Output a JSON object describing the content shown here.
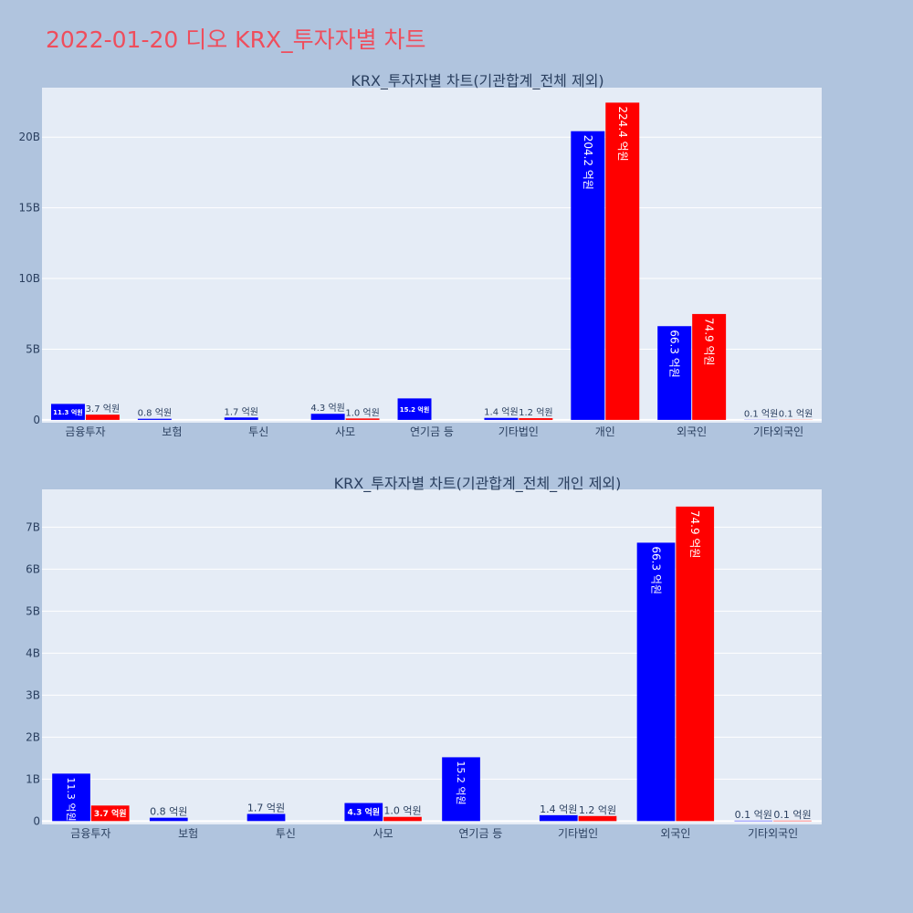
{
  "page": {
    "title": "2022-01-20 디오 KRX_투자자별 차트"
  },
  "colors": {
    "buy": "#0000ff",
    "sell": "#ff0000",
    "plot_bg": "#e5ecf6",
    "page_bg": "#b0c4de",
    "title": "#ef4d5c"
  },
  "chart_data": [
    {
      "type": "bar",
      "title": "KRX_투자자별 차트(기관합계_전체 제외)",
      "categories": [
        "금융투자",
        "보험",
        "투신",
        "사모",
        "연기금 등",
        "기타법인",
        "개인",
        "외국인",
        "기타외국인"
      ],
      "series": [
        {
          "color": "#0000ff",
          "values": [
            1.13,
            0.08,
            0.17,
            0.43,
            1.52,
            0.14,
            20.42,
            6.63,
            0.01
          ],
          "labels": [
            "11.3 억원",
            "0.8 억원",
            "1.7 억원",
            "4.3 억원",
            "15.2 억원",
            "1.4 억원",
            "204.2 억원",
            "66.3 억원",
            "0.1 억원"
          ]
        },
        {
          "color": "#ff0000",
          "values": [
            0.37,
            0,
            0,
            0.1,
            0,
            0.12,
            22.44,
            7.49,
            0.01
          ],
          "labels": [
            "3.7 억원",
            "",
            "",
            "1.0 억원",
            "",
            "1.2 억원",
            "224.4 억원",
            "74.9 억원",
            "0.1 억원"
          ]
        }
      ],
      "yticks": [
        0,
        5,
        10,
        15,
        20
      ],
      "ytick_labels": [
        "0",
        "5B",
        "10B",
        "15B",
        "20B"
      ],
      "ylim": [
        -0.2,
        23.5
      ],
      "grid": true
    },
    {
      "type": "bar",
      "title": "KRX_투자자별 차트(기관합계_전체_개인 제외)",
      "categories": [
        "금융투자",
        "보험",
        "투신",
        "사모",
        "연기금 등",
        "기타법인",
        "외국인",
        "기타외국인"
      ],
      "series": [
        {
          "color": "#0000ff",
          "values": [
            1.13,
            0.08,
            0.17,
            0.43,
            1.52,
            0.14,
            6.63,
            0.01
          ],
          "labels": [
            "11.3 억원",
            "0.8 억원",
            "1.7 억원",
            "4.3 억원",
            "15.2 억원",
            "1.4 억원",
            "66.3 억원",
            "0.1 억원"
          ]
        },
        {
          "color": "#ff0000",
          "values": [
            0.37,
            0,
            0,
            0.1,
            0,
            0.12,
            7.49,
            0.01
          ],
          "labels": [
            "3.7 억원",
            "",
            "",
            "1.0 억원",
            "",
            "1.2 억원",
            "74.9 억원",
            "0.1 억원"
          ]
        }
      ],
      "yticks": [
        0,
        1,
        2,
        3,
        4,
        5,
        6,
        7
      ],
      "ytick_labels": [
        "0",
        "1B",
        "2B",
        "3B",
        "4B",
        "5B",
        "6B",
        "7B"
      ],
      "ylim": [
        -0.08,
        7.9
      ],
      "grid": true
    }
  ]
}
